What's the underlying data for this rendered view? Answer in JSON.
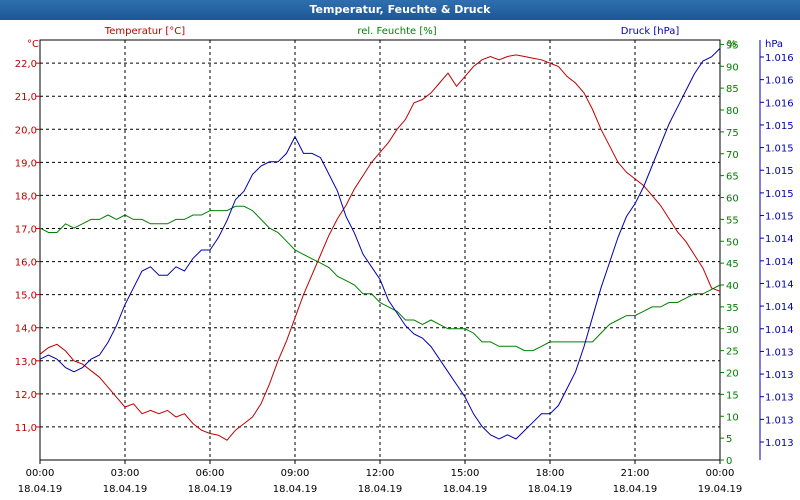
{
  "window": {
    "title": "Temperatur, Feuchte & Druck"
  },
  "colors": {
    "temperature": "#c00000",
    "humidity": "#008000",
    "pressure": "#0000b0",
    "grid": "#000000",
    "titlebar": "#1c5796"
  },
  "chart_data": {
    "type": "line",
    "title": "Temperatur, Feuchte & Druck",
    "grid": true,
    "x_ticks": [
      {
        "time": "00:00",
        "date": "18.04.19"
      },
      {
        "time": "03:00",
        "date": "18.04.19"
      },
      {
        "time": "06:00",
        "date": "18.04.19"
      },
      {
        "time": "09:00",
        "date": "18.04.19"
      },
      {
        "time": "12:00",
        "date": "18.04.19"
      },
      {
        "time": "15:00",
        "date": "18.04.19"
      },
      {
        "time": "18:00",
        "date": "18.04.19"
      },
      {
        "time": "21:00",
        "date": "18.04.19"
      },
      {
        "time": "00:00",
        "date": "19.04.19"
      }
    ],
    "xlim": [
      0,
      24
    ],
    "axes": {
      "temperature": {
        "label": "Temperatur [°C]",
        "unit": "°C",
        "ylim": [
          10.0,
          22.7
        ],
        "tick_values": [
          11.0,
          12.0,
          13.0,
          14.0,
          15.0,
          16.0,
          17.0,
          18.0,
          19.0,
          20.0,
          21.0,
          22.0
        ],
        "tick_labels": [
          "11,0",
          "12,0",
          "13,0",
          "14,0",
          "15,0",
          "16,0",
          "17,0",
          "18,0",
          "19,0",
          "20,0",
          "21,0",
          "22,0"
        ]
      },
      "humidity": {
        "label": "rel. Feuchte [%]",
        "unit": "%",
        "ylim": [
          0,
          96
        ],
        "tick_values": [
          0,
          5,
          10,
          15,
          20,
          25,
          30,
          35,
          40,
          45,
          50,
          55,
          60,
          65,
          70,
          75,
          80,
          85,
          90,
          95
        ],
        "tick_labels": [
          "0",
          "5",
          "10",
          "15",
          "20",
          "25",
          "30",
          "35",
          "40",
          "45",
          "50",
          "55",
          "60",
          "65",
          "70",
          "75",
          "80",
          "85",
          "90",
          "95"
        ]
      },
      "pressure": {
        "label": "Druck [hPa]",
        "unit": "hPa",
        "tick_labels": [
          "1.013",
          "1.013",
          "1.013",
          "1.013",
          "1.013",
          "1.014",
          "1.014",
          "1.014",
          "1.014",
          "1.014",
          "1.015",
          "1.015",
          "1.015",
          "1.015",
          "1.015",
          "1.016",
          "1.016",
          "1.016"
        ]
      }
    },
    "series": [
      {
        "name": "Temperatur [°C]",
        "axis": "temperature",
        "color": "#c00000",
        "x": [
          0,
          0.3,
          0.6,
          0.9,
          1.2,
          1.5,
          1.8,
          2.1,
          2.4,
          2.7,
          3.0,
          3.3,
          3.6,
          3.9,
          4.2,
          4.5,
          4.8,
          5.1,
          5.4,
          5.7,
          6.0,
          6.3,
          6.6,
          6.9,
          7.2,
          7.5,
          7.8,
          8.1,
          8.4,
          8.7,
          9.0,
          9.3,
          9.6,
          9.9,
          10.2,
          10.5,
          10.8,
          11.1,
          11.4,
          11.7,
          12.0,
          12.3,
          12.6,
          12.9,
          13.2,
          13.5,
          13.8,
          14.1,
          14.4,
          14.7,
          15.0,
          15.3,
          15.6,
          15.9,
          16.2,
          16.5,
          16.8,
          17.1,
          17.4,
          17.7,
          18.0,
          18.3,
          18.6,
          18.9,
          19.2,
          19.5,
          19.8,
          20.1,
          20.4,
          20.7,
          21.0,
          21.3,
          21.6,
          21.9,
          22.2,
          22.5,
          22.8,
          23.1,
          23.4,
          23.7,
          24.0
        ],
        "values": [
          13.2,
          13.4,
          13.5,
          13.3,
          13.0,
          12.9,
          12.7,
          12.5,
          12.2,
          11.9,
          11.6,
          11.7,
          11.4,
          11.5,
          11.4,
          11.5,
          11.3,
          11.4,
          11.1,
          10.9,
          10.8,
          10.75,
          10.6,
          10.9,
          11.1,
          11.3,
          11.7,
          12.3,
          13.0,
          13.6,
          14.3,
          15.0,
          15.6,
          16.2,
          16.8,
          17.3,
          17.7,
          18.2,
          18.6,
          19.0,
          19.3,
          19.6,
          20.0,
          20.3,
          20.8,
          20.9,
          21.1,
          21.4,
          21.7,
          21.3,
          21.6,
          21.9,
          22.1,
          22.2,
          22.1,
          22.2,
          22.25,
          22.2,
          22.15,
          22.1,
          22.0,
          21.9,
          21.6,
          21.4,
          21.1,
          20.6,
          20.0,
          19.5,
          19.0,
          18.7,
          18.5,
          18.3,
          18.0,
          17.7,
          17.3,
          16.9,
          16.6,
          16.2,
          15.8,
          15.2,
          15.1
        ]
      },
      {
        "name": "rel. Feuchte [%]",
        "axis": "humidity",
        "color": "#008000",
        "x": [
          0,
          0.3,
          0.6,
          0.9,
          1.2,
          1.5,
          1.8,
          2.1,
          2.4,
          2.7,
          3.0,
          3.3,
          3.6,
          3.9,
          4.2,
          4.5,
          4.8,
          5.1,
          5.4,
          5.7,
          6.0,
          6.3,
          6.6,
          6.9,
          7.2,
          7.5,
          7.8,
          8.1,
          8.4,
          8.7,
          9.0,
          9.3,
          9.6,
          9.9,
          10.2,
          10.5,
          10.8,
          11.1,
          11.4,
          11.7,
          12.0,
          12.3,
          12.6,
          12.9,
          13.2,
          13.5,
          13.8,
          14.1,
          14.4,
          14.7,
          15.0,
          15.3,
          15.6,
          15.9,
          16.2,
          16.5,
          16.8,
          17.1,
          17.4,
          17.7,
          18.0,
          18.3,
          18.6,
          18.9,
          19.2,
          19.5,
          19.8,
          20.1,
          20.4,
          20.7,
          21.0,
          21.3,
          21.6,
          21.9,
          22.2,
          22.5,
          22.8,
          23.1,
          23.4,
          23.7,
          24.0
        ],
        "values": [
          53,
          52,
          52,
          54,
          53,
          54,
          55,
          55,
          56,
          55,
          56,
          55,
          55,
          54,
          54,
          54,
          55,
          55,
          56,
          56,
          57,
          57,
          57,
          58,
          58,
          57,
          55,
          53,
          52,
          50,
          48,
          47,
          46,
          45,
          44,
          42,
          41,
          40,
          38,
          38,
          36,
          35,
          34,
          32,
          32,
          31,
          32,
          31,
          30,
          30,
          30,
          29,
          27,
          27,
          26,
          26,
          26,
          25,
          25,
          26,
          27,
          27,
          27,
          27,
          27,
          27,
          29,
          31,
          32,
          33,
          33,
          34,
          35,
          35,
          36,
          36,
          37,
          38,
          38,
          39,
          40
        ]
      },
      {
        "name": "Druck [hPa]",
        "axis": "pressure",
        "color": "#0000b0",
        "x": [
          0,
          0.3,
          0.6,
          0.9,
          1.2,
          1.5,
          1.8,
          2.1,
          2.4,
          2.7,
          3.0,
          3.3,
          3.6,
          3.9,
          4.2,
          4.5,
          4.8,
          5.1,
          5.4,
          5.7,
          6.0,
          6.3,
          6.6,
          6.9,
          7.2,
          7.5,
          7.8,
          8.1,
          8.4,
          8.7,
          9.0,
          9.3,
          9.6,
          9.9,
          10.2,
          10.5,
          10.8,
          11.1,
          11.4,
          11.7,
          12.0,
          12.3,
          12.6,
          12.9,
          13.2,
          13.5,
          13.8,
          14.1,
          14.4,
          14.7,
          15.0,
          15.3,
          15.6,
          15.9,
          16.2,
          16.5,
          16.8,
          17.1,
          17.4,
          17.7,
          18.0,
          18.3,
          18.6,
          18.9,
          19.2,
          19.5,
          19.8,
          20.1,
          20.4,
          20.7,
          21.0,
          21.3,
          21.6,
          21.9,
          22.2,
          22.5,
          22.8,
          23.1,
          23.4,
          23.7,
          24.0
        ],
        "plot_fraction": [
          0.24,
          0.25,
          0.24,
          0.22,
          0.21,
          0.22,
          0.24,
          0.25,
          0.28,
          0.32,
          0.37,
          0.41,
          0.45,
          0.46,
          0.44,
          0.44,
          0.46,
          0.45,
          0.48,
          0.5,
          0.5,
          0.53,
          0.57,
          0.62,
          0.64,
          0.68,
          0.7,
          0.71,
          0.71,
          0.73,
          0.77,
          0.73,
          0.73,
          0.72,
          0.68,
          0.64,
          0.58,
          0.54,
          0.49,
          0.46,
          0.43,
          0.38,
          0.35,
          0.32,
          0.3,
          0.29,
          0.27,
          0.24,
          0.21,
          0.18,
          0.15,
          0.11,
          0.08,
          0.06,
          0.05,
          0.06,
          0.05,
          0.07,
          0.09,
          0.11,
          0.11,
          0.13,
          0.17,
          0.21,
          0.27,
          0.34,
          0.41,
          0.47,
          0.53,
          0.58,
          0.61,
          0.65,
          0.7,
          0.75,
          0.8,
          0.84,
          0.88,
          0.92,
          0.95,
          0.96,
          0.98
        ]
      }
    ]
  }
}
